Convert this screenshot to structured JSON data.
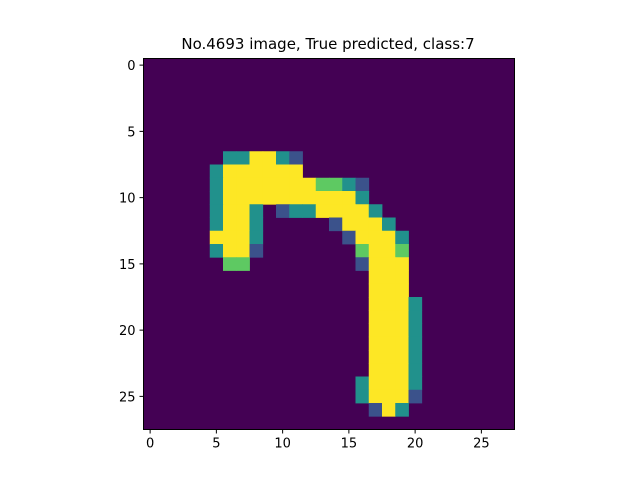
{
  "chart_data": {
    "type": "heatmap",
    "title": "No.4693 image, True predicted, class:7",
    "rows": 28,
    "cols": 28,
    "x_ticks": [
      0,
      5,
      10,
      15,
      20,
      25
    ],
    "y_ticks": [
      0,
      5,
      10,
      15,
      20,
      25
    ],
    "x_tick_labels": [
      "0",
      "5",
      "10",
      "15",
      "20",
      "25"
    ],
    "y_tick_labels": [
      "0",
      "5",
      "10",
      "15",
      "20",
      "25"
    ],
    "colormap": "viridis",
    "value_range": [
      0,
      1
    ],
    "background_value": 0,
    "colors": {
      "background": "#440154",
      "low": "#3b528b",
      "mid": "#21918c",
      "high": "#5ec962",
      "max": "#fde725"
    },
    "pixels": [
      {
        "r": 7,
        "c": 6,
        "v": 0.55
      },
      {
        "r": 7,
        "c": 7,
        "v": 0.55
      },
      {
        "r": 7,
        "c": 8,
        "v": 1
      },
      {
        "r": 7,
        "c": 9,
        "v": 1
      },
      {
        "r": 7,
        "c": 10,
        "v": 0.55
      },
      {
        "r": 7,
        "c": 11,
        "v": 0.3
      },
      {
        "r": 8,
        "c": 5,
        "v": 0.55
      },
      {
        "r": 8,
        "c": 6,
        "v": 1
      },
      {
        "r": 8,
        "c": 7,
        "v": 1
      },
      {
        "r": 8,
        "c": 8,
        "v": 1
      },
      {
        "r": 8,
        "c": 9,
        "v": 1
      },
      {
        "r": 8,
        "c": 10,
        "v": 1
      },
      {
        "r": 8,
        "c": 11,
        "v": 1
      },
      {
        "r": 9,
        "c": 5,
        "v": 0.55
      },
      {
        "r": 9,
        "c": 6,
        "v": 1
      },
      {
        "r": 9,
        "c": 7,
        "v": 1
      },
      {
        "r": 9,
        "c": 8,
        "v": 1
      },
      {
        "r": 9,
        "c": 9,
        "v": 1
      },
      {
        "r": 9,
        "c": 10,
        "v": 1
      },
      {
        "r": 9,
        "c": 11,
        "v": 1
      },
      {
        "r": 9,
        "c": 12,
        "v": 1
      },
      {
        "r": 9,
        "c": 13,
        "v": 0.75
      },
      {
        "r": 9,
        "c": 14,
        "v": 0.75
      },
      {
        "r": 9,
        "c": 15,
        "v": 0.55
      },
      {
        "r": 9,
        "c": 16,
        "v": 0.3
      },
      {
        "r": 10,
        "c": 5,
        "v": 0.55
      },
      {
        "r": 10,
        "c": 6,
        "v": 1
      },
      {
        "r": 10,
        "c": 7,
        "v": 1
      },
      {
        "r": 10,
        "c": 8,
        "v": 1
      },
      {
        "r": 10,
        "c": 9,
        "v": 1
      },
      {
        "r": 10,
        "c": 10,
        "v": 1
      },
      {
        "r": 10,
        "c": 11,
        "v": 1
      },
      {
        "r": 10,
        "c": 12,
        "v": 1
      },
      {
        "r": 10,
        "c": 13,
        "v": 1
      },
      {
        "r": 10,
        "c": 14,
        "v": 1
      },
      {
        "r": 10,
        "c": 15,
        "v": 1
      },
      {
        "r": 10,
        "c": 16,
        "v": 0.55
      },
      {
        "r": 11,
        "c": 5,
        "v": 0.55
      },
      {
        "r": 11,
        "c": 6,
        "v": 1
      },
      {
        "r": 11,
        "c": 7,
        "v": 1
      },
      {
        "r": 11,
        "c": 8,
        "v": 0.55
      },
      {
        "r": 11,
        "c": 10,
        "v": 0.3
      },
      {
        "r": 11,
        "c": 11,
        "v": 0.55
      },
      {
        "r": 11,
        "c": 12,
        "v": 0.55
      },
      {
        "r": 11,
        "c": 13,
        "v": 1
      },
      {
        "r": 11,
        "c": 14,
        "v": 1
      },
      {
        "r": 11,
        "c": 15,
        "v": 1
      },
      {
        "r": 11,
        "c": 16,
        "v": 1
      },
      {
        "r": 11,
        "c": 17,
        "v": 0.55
      },
      {
        "r": 12,
        "c": 5,
        "v": 0.55
      },
      {
        "r": 12,
        "c": 6,
        "v": 1
      },
      {
        "r": 12,
        "c": 7,
        "v": 1
      },
      {
        "r": 12,
        "c": 8,
        "v": 0.55
      },
      {
        "r": 12,
        "c": 14,
        "v": 0.3
      },
      {
        "r": 12,
        "c": 15,
        "v": 1
      },
      {
        "r": 12,
        "c": 16,
        "v": 1
      },
      {
        "r": 12,
        "c": 17,
        "v": 1
      },
      {
        "r": 12,
        "c": 18,
        "v": 0.55
      },
      {
        "r": 13,
        "c": 5,
        "v": 1
      },
      {
        "r": 13,
        "c": 6,
        "v": 1
      },
      {
        "r": 13,
        "c": 7,
        "v": 1
      },
      {
        "r": 13,
        "c": 8,
        "v": 0.55
      },
      {
        "r": 13,
        "c": 15,
        "v": 0.3
      },
      {
        "r": 13,
        "c": 16,
        "v": 1
      },
      {
        "r": 13,
        "c": 17,
        "v": 1
      },
      {
        "r": 13,
        "c": 18,
        "v": 1
      },
      {
        "r": 13,
        "c": 19,
        "v": 0.55
      },
      {
        "r": 14,
        "c": 5,
        "v": 0.55
      },
      {
        "r": 14,
        "c": 6,
        "v": 1
      },
      {
        "r": 14,
        "c": 7,
        "v": 1
      },
      {
        "r": 14,
        "c": 8,
        "v": 0.3
      },
      {
        "r": 14,
        "c": 16,
        "v": 0.75
      },
      {
        "r": 14,
        "c": 17,
        "v": 1
      },
      {
        "r": 14,
        "c": 18,
        "v": 1
      },
      {
        "r": 14,
        "c": 19,
        "v": 0.75
      },
      {
        "r": 15,
        "c": 6,
        "v": 0.75
      },
      {
        "r": 15,
        "c": 7,
        "v": 0.75
      },
      {
        "r": 15,
        "c": 16,
        "v": 0.3
      },
      {
        "r": 15,
        "c": 17,
        "v": 1
      },
      {
        "r": 15,
        "c": 18,
        "v": 1
      },
      {
        "r": 15,
        "c": 19,
        "v": 1
      },
      {
        "r": 16,
        "c": 17,
        "v": 1
      },
      {
        "r": 16,
        "c": 18,
        "v": 1
      },
      {
        "r": 16,
        "c": 19,
        "v": 1
      },
      {
        "r": 17,
        "c": 17,
        "v": 1
      },
      {
        "r": 17,
        "c": 18,
        "v": 1
      },
      {
        "r": 17,
        "c": 19,
        "v": 1
      },
      {
        "r": 18,
        "c": 17,
        "v": 1
      },
      {
        "r": 18,
        "c": 18,
        "v": 1
      },
      {
        "r": 18,
        "c": 19,
        "v": 1
      },
      {
        "r": 18,
        "c": 20,
        "v": 0.55
      },
      {
        "r": 19,
        "c": 17,
        "v": 1
      },
      {
        "r": 19,
        "c": 18,
        "v": 1
      },
      {
        "r": 19,
        "c": 19,
        "v": 1
      },
      {
        "r": 19,
        "c": 20,
        "v": 0.55
      },
      {
        "r": 20,
        "c": 17,
        "v": 1
      },
      {
        "r": 20,
        "c": 18,
        "v": 1
      },
      {
        "r": 20,
        "c": 19,
        "v": 1
      },
      {
        "r": 20,
        "c": 20,
        "v": 0.55
      },
      {
        "r": 21,
        "c": 17,
        "v": 1
      },
      {
        "r": 21,
        "c": 18,
        "v": 1
      },
      {
        "r": 21,
        "c": 19,
        "v": 1
      },
      {
        "r": 21,
        "c": 20,
        "v": 0.55
      },
      {
        "r": 22,
        "c": 17,
        "v": 1
      },
      {
        "r": 22,
        "c": 18,
        "v": 1
      },
      {
        "r": 22,
        "c": 19,
        "v": 1
      },
      {
        "r": 22,
        "c": 20,
        "v": 0.55
      },
      {
        "r": 23,
        "c": 17,
        "v": 1
      },
      {
        "r": 23,
        "c": 18,
        "v": 1
      },
      {
        "r": 23,
        "c": 19,
        "v": 1
      },
      {
        "r": 23,
        "c": 20,
        "v": 0.55
      },
      {
        "r": 24,
        "c": 16,
        "v": 0.55
      },
      {
        "r": 24,
        "c": 17,
        "v": 1
      },
      {
        "r": 24,
        "c": 18,
        "v": 1
      },
      {
        "r": 24,
        "c": 19,
        "v": 1
      },
      {
        "r": 24,
        "c": 20,
        "v": 0.55
      },
      {
        "r": 25,
        "c": 16,
        "v": 0.55
      },
      {
        "r": 25,
        "c": 17,
        "v": 1
      },
      {
        "r": 25,
        "c": 18,
        "v": 1
      },
      {
        "r": 25,
        "c": 19,
        "v": 1
      },
      {
        "r": 25,
        "c": 20,
        "v": 0.3
      },
      {
        "r": 26,
        "c": 17,
        "v": 0.3
      },
      {
        "r": 26,
        "c": 18,
        "v": 1
      },
      {
        "r": 26,
        "c": 19,
        "v": 0.55
      }
    ]
  }
}
